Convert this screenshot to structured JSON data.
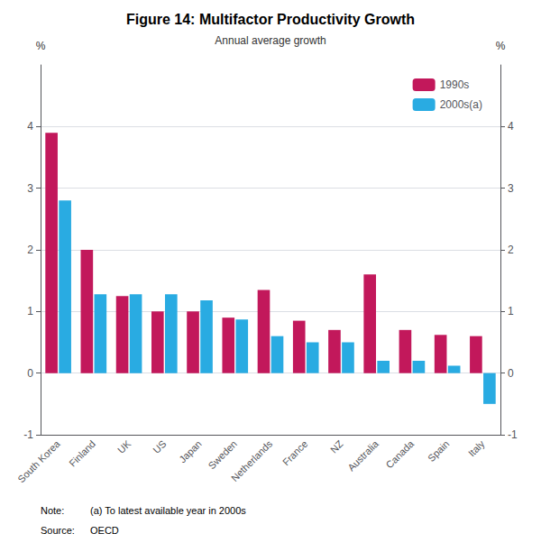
{
  "chart_data": {
    "type": "bar",
    "title": "Figure 14: Multifactor Productivity Growth",
    "subtitle": "Annual average growth",
    "categories": [
      "South Korea",
      "Finland",
      "UK",
      "US",
      "Japan",
      "Sweden",
      "Netherlands",
      "France",
      "NZ",
      "Australia",
      "Canada",
      "Spain",
      "Italy"
    ],
    "series": [
      {
        "name": "1990s",
        "color": "#C2185B",
        "values": [
          3.9,
          2.0,
          1.25,
          1.0,
          1.0,
          0.9,
          1.35,
          0.85,
          0.7,
          1.6,
          0.7,
          0.62,
          0.6
        ]
      },
      {
        "name": "2000s(a)",
        "color": "#29ABE2",
        "values": [
          2.8,
          1.28,
          1.28,
          1.28,
          1.18,
          0.87,
          0.6,
          0.5,
          0.5,
          0.2,
          0.2,
          0.12,
          -0.5
        ]
      }
    ],
    "ylabel": "%",
    "y2label": "%",
    "ylim": [
      -1,
      5
    ],
    "yticks": [
      -1,
      0,
      1,
      2,
      3,
      4
    ],
    "y2lim": [
      -1,
      5
    ],
    "y2ticks": [
      -1,
      0,
      1,
      2,
      3,
      4
    ],
    "grid": true,
    "legend": "upper right",
    "note": {
      "label": "Note:",
      "text": "(a) To latest available year in 2000s"
    },
    "source": {
      "label": "Source:",
      "text": "OECD"
    }
  }
}
